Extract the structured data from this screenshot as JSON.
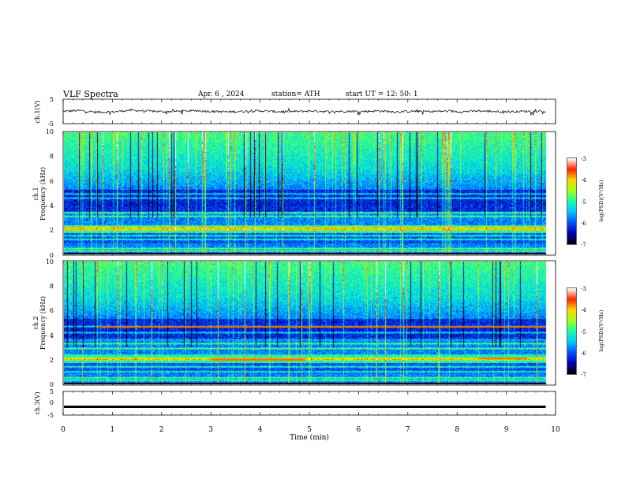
{
  "header": {
    "title": "VLF  Spectra",
    "date": "Apr. 6  , 2024",
    "station": "station= ATH",
    "start_ut": "start  UT  =    12: 50: 1"
  },
  "chart_data": [
    {
      "type": "line",
      "panel": "ch1-waveform",
      "ylabel": "ch.1(V)",
      "ylim": [
        -5,
        5
      ],
      "yticks": [
        "5",
        "-5"
      ],
      "series": [
        {
          "values": [
            0,
            0.4,
            -0.3,
            -0.2,
            0.5,
            0.2,
            -0.1,
            0.1,
            0.3,
            0,
            -0.2,
            0.1,
            0.2,
            -0.1,
            0,
            0.2,
            -0.1,
            0.1,
            0,
            0.2,
            -0.2,
            0.1,
            0,
            0.1,
            -0.1,
            0.2,
            0,
            -0.1,
            0.1,
            0
          ]
        }
      ],
      "color": "#000000"
    },
    {
      "type": "heatmap",
      "panel": "ch1-spectrogram",
      "ylabel": "ch.1\nFrequency  (kHz)",
      "ylim": [
        0,
        10
      ],
      "yticks": [
        "0",
        "2",
        "4",
        "6",
        "8",
        "10"
      ],
      "colorbar": {
        "label": "log(PSD)(V²/Hz)",
        "range": [
          -7,
          -3
        ],
        "ticks": [
          "-3",
          "-4",
          "-5",
          "-6",
          "-7"
        ]
      },
      "bands_khz": [
        0.25,
        0.45,
        1.2,
        1.5,
        2.0,
        2.1,
        2.2,
        3.1,
        3.4,
        4.6,
        4.95
      ]
    },
    {
      "type": "heatmap",
      "panel": "ch2-spectrogram",
      "ylabel": "ch.2\nFrequency  (kHz)",
      "ylim": [
        0,
        10
      ],
      "yticks": [
        "0",
        "2",
        "4",
        "6",
        "8",
        "10"
      ],
      "colorbar": {
        "label": "log(PSD)(V²/Hz)",
        "range": [
          -7,
          -3
        ],
        "ticks": [
          "-3",
          "-4",
          "-5",
          "-6",
          "-7"
        ]
      },
      "bands_khz": [
        0.3,
        0.5,
        1.0,
        1.4,
        2.0,
        2.1,
        2.9,
        3.3,
        3.6,
        4.2,
        4.7
      ],
      "highlight_segments": [
        {
          "freq_khz": 2.0,
          "t_min": [
            3.0,
            4.9
          ]
        },
        {
          "freq_khz": 2.1,
          "t_min": [
            8.4,
            9.4
          ]
        },
        {
          "freq_khz": 4.7,
          "t_min": [
            0.7,
            9.8
          ]
        }
      ]
    },
    {
      "type": "line",
      "panel": "ch3-waveform",
      "ylabel": "ch.3(V)",
      "ylim": [
        -5,
        5
      ],
      "yticks": [
        "5",
        "0",
        "-5"
      ],
      "series": [
        {
          "values": [
            -1.5,
            -1.5
          ]
        }
      ],
      "color": "#000000"
    }
  ],
  "x_axis": {
    "label": "Time  (min)",
    "range": [
      0,
      10
    ],
    "ticks": [
      "0",
      "1",
      "2",
      "3",
      "4",
      "5",
      "6",
      "7",
      "8",
      "9",
      "10"
    ],
    "data_end_min": 9.8
  },
  "colors": {
    "colormap": [
      "#000000",
      "#0000b4",
      "#0050ff",
      "#00c8ff",
      "#19ff9f",
      "#a0ff19",
      "#ffd700",
      "#ff2400",
      "#ffffff"
    ],
    "axis": "#000000"
  }
}
